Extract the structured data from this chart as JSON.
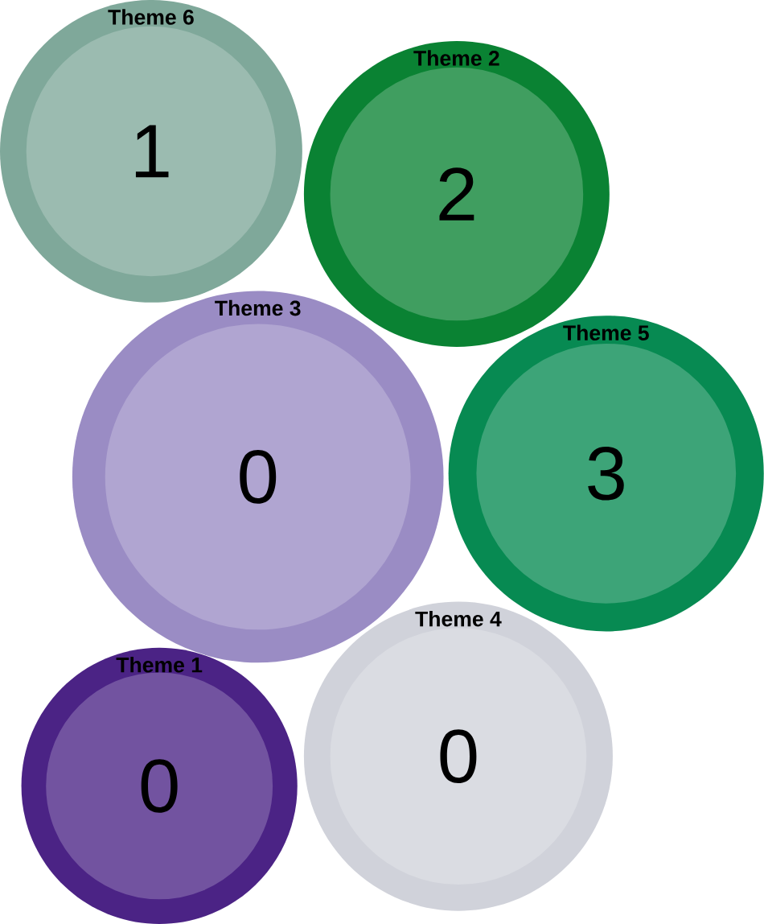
{
  "chart_data": {
    "type": "other",
    "categories": [
      "Theme 6",
      "Theme 2",
      "Theme 3",
      "Theme 5",
      "Theme 1",
      "Theme 4"
    ],
    "values": [
      1,
      2,
      0,
      3,
      0,
      0
    ],
    "data_labels": true,
    "colors": [
      "#7fa89a",
      "#0a8233",
      "#9a8cc4",
      "#078a52",
      "#4b2385",
      "#d0d2da"
    ]
  }
}
